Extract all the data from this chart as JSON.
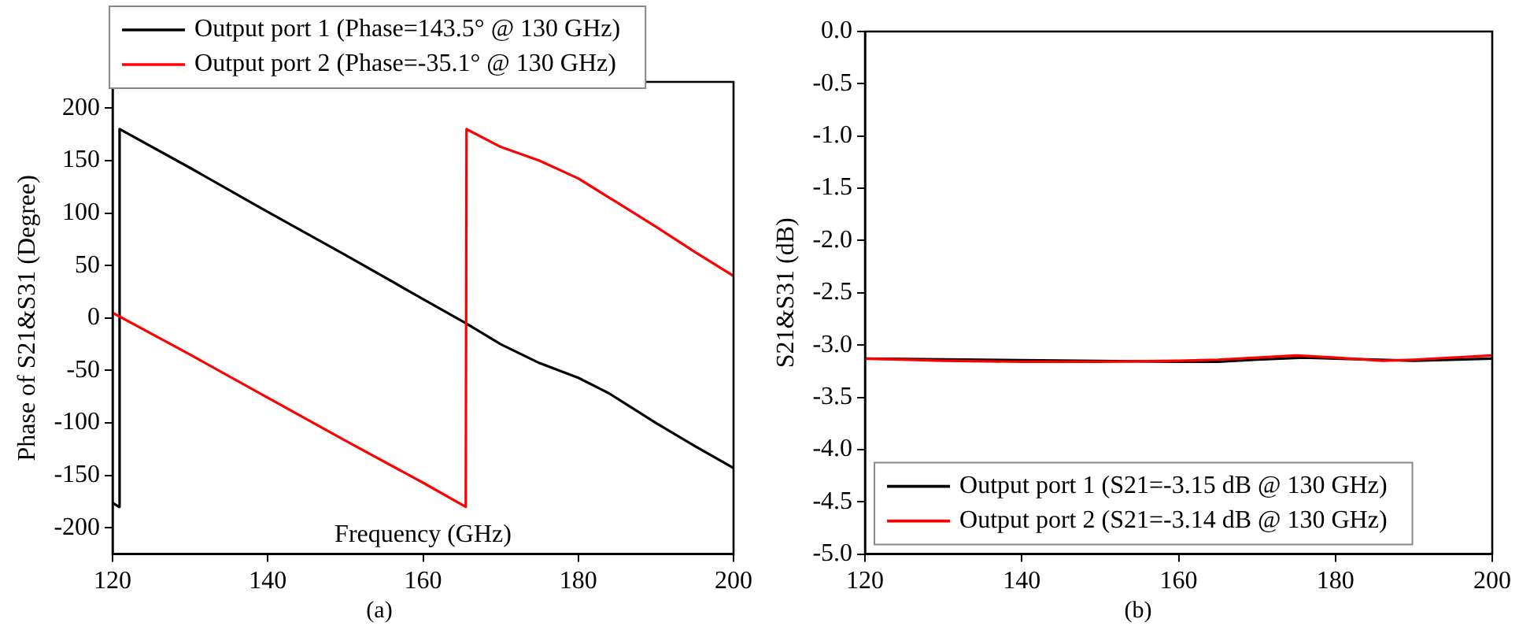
{
  "chart_data": [
    {
      "type": "line",
      "xlabel": "Frequency (GHz)",
      "ylabel": "Phase of S21&S31 (Degree)",
      "annotations": [
        "(a)"
      ],
      "xlim": [
        120,
        200
      ],
      "xticks": [
        120,
        140,
        160,
        180,
        200
      ],
      "ylim": [
        -225,
        225
      ],
      "yticks": [
        -200,
        -150,
        -100,
        -50,
        0,
        50,
        100,
        150,
        200
      ],
      "grid": false,
      "legend": "top",
      "marker": "none",
      "series": [
        {
          "name": "Output port 1 (Phase=143.5° @ 130 GHz)",
          "color": "#000000",
          "x": [
            120,
            120.8,
            120.9,
            130,
            140,
            150,
            160,
            165.5,
            170,
            175,
            180,
            184,
            190,
            195,
            200
          ],
          "values": [
            -176,
            -180,
            180,
            143,
            101,
            60,
            18,
            -5,
            -25,
            -43,
            -57,
            -72,
            -100,
            -122,
            -143
          ]
        },
        {
          "name": "Output port 2 (Phase=-35.1° @ 130 GHz)",
          "color": "#ff0000",
          "x": [
            120,
            130,
            140,
            150,
            160,
            165.5,
            165.6,
            170,
            175,
            180,
            185,
            190,
            195,
            200
          ],
          "values": [
            5,
            -35,
            -76,
            -117,
            -157,
            -180,
            180,
            163,
            150,
            133,
            110,
            87,
            63,
            40
          ]
        }
      ]
    },
    {
      "type": "line",
      "ylabel": "S21&S31 (dB)",
      "annotations": [
        "(b)"
      ],
      "xlim": [
        120,
        200
      ],
      "xticks": [
        120,
        140,
        160,
        180,
        200
      ],
      "ylim": [
        -5,
        0
      ],
      "yticks": [
        {
          "value": -5,
          "label": "-5.0"
        },
        {
          "value": -4.5,
          "label": "-4.5"
        },
        {
          "value": -4,
          "label": "-4.0"
        },
        {
          "value": -3.5,
          "label": "-3.5"
        },
        {
          "value": -3,
          "label": "-3.0"
        },
        {
          "value": -2.5,
          "label": "-2.5"
        },
        {
          "value": -2,
          "label": "-2.0"
        },
        {
          "value": -1.5,
          "label": "-1.5"
        },
        {
          "value": -1,
          "label": "-1.0"
        },
        {
          "value": -0.5,
          "label": "-0.5"
        },
        {
          "value": 0,
          "label": "0.0"
        }
      ],
      "grid": false,
      "legend": "bottom left",
      "marker": "none",
      "series": [
        {
          "name": "Output port 1 (S21=-3.15 dB @ 130 GHz)",
          "color": "#000000",
          "x": [
            120,
            130,
            140,
            150,
            160,
            165,
            170,
            176,
            180,
            186,
            190,
            200
          ],
          "values": [
            -3.13,
            null,
            null,
            null,
            -3.16,
            -3.16,
            -3.14,
            -3.12,
            -3.13,
            null,
            -3.15,
            -3.13
          ]
        },
        {
          "name": "Output port 2 (S21=-3.14 dB @ 130 GHz)",
          "color": "#ff0000",
          "x": [
            120,
            130,
            140,
            150,
            160,
            165,
            170,
            175,
            180,
            186,
            190,
            200
          ],
          "values": [
            -3.13,
            -3.15,
            -3.16,
            -3.16,
            -3.15,
            -3.14,
            -3.12,
            -3.1,
            -3.12,
            -3.15,
            -3.14,
            -3.1
          ]
        }
      ]
    }
  ]
}
